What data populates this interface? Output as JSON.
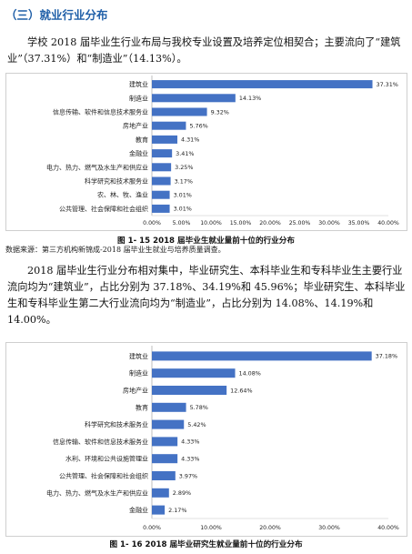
{
  "section": {
    "heading": "（三）就业行业分布"
  },
  "paragraph1": "学校 2018 届毕业生行业布局与我校专业设置及培养定位相契合；主要流向了“建筑业”（37.31%）和“制造业”（14.13%）。",
  "source_note": "数据来源：第三方机构新锦成-2018 届毕业生就业与培养质量调查。",
  "paragraph2": "2018 届毕业生行业分布相对集中，毕业研究生、本科毕业生和专科毕业生主要行业流向均为“建筑业”，占比分别为 37.18%、34.19%和 45.96%；毕业研究生、本科毕业生和专科毕业生第二大行业流向均为“制造业”，占比分别为 14.08%、14.19%和 14.00%。",
  "colors": {
    "bar": "#4472c4",
    "heading": "#1f5fa8"
  },
  "chart_data": [
    {
      "type": "bar",
      "orientation": "horizontal",
      "title": "图 1- 15 2018 届毕业生就业量前十位的行业分布",
      "categories": [
        "建筑业",
        "制造业",
        "信息传输、软件和信息技术服务业",
        "房地产业",
        "教育",
        "金融业",
        "电力、热力、燃气及水生产和供应业",
        "科学研究和技术服务业",
        "农、林、牧、渔业",
        "公共管理、社会保障和社会组织"
      ],
      "values": [
        37.31,
        14.13,
        9.32,
        5.76,
        4.31,
        3.41,
        3.25,
        3.17,
        3.01,
        3.01
      ],
      "value_labels": [
        "37.31%",
        "14.13%",
        "9.32%",
        "5.76%",
        "4.31%",
        "3.41%",
        "3.25%",
        "3.17%",
        "3.01%",
        "3.01%"
      ],
      "xlim": [
        0,
        40
      ],
      "ticks": [
        "0.00%",
        "5.00%",
        "10.00%",
        "15.00%",
        "20.00%",
        "25.00%",
        "30.00%",
        "35.00%",
        "40.00%"
      ],
      "grid": false
    },
    {
      "type": "bar",
      "orientation": "horizontal",
      "title": "图 1- 16 2018 届毕业研究生就业量前十位的行业分布",
      "categories": [
        "建筑业",
        "制造业",
        "房地产业",
        "教育",
        "科学研究和技术服务业",
        "信息传输、软件和信息技术服务业",
        "水利、环境和公共设施管理业",
        "公共管理、社会保障和社会组织",
        "电力、热力、燃气及水生产和供应业",
        "金融业"
      ],
      "values": [
        37.18,
        14.08,
        12.64,
        5.78,
        5.42,
        4.33,
        4.33,
        3.97,
        2.89,
        2.17
      ],
      "value_labels": [
        "37.18%",
        "14.08%",
        "12.64%",
        "5.78%",
        "5.42%",
        "4.33%",
        "4.33%",
        "3.97%",
        "2.89%",
        "2.17%"
      ],
      "xlim": [
        0,
        40
      ],
      "ticks": [
        "0.00%",
        "10.00%",
        "20.00%",
        "30.00%",
        "40.00%"
      ],
      "grid": false
    }
  ]
}
